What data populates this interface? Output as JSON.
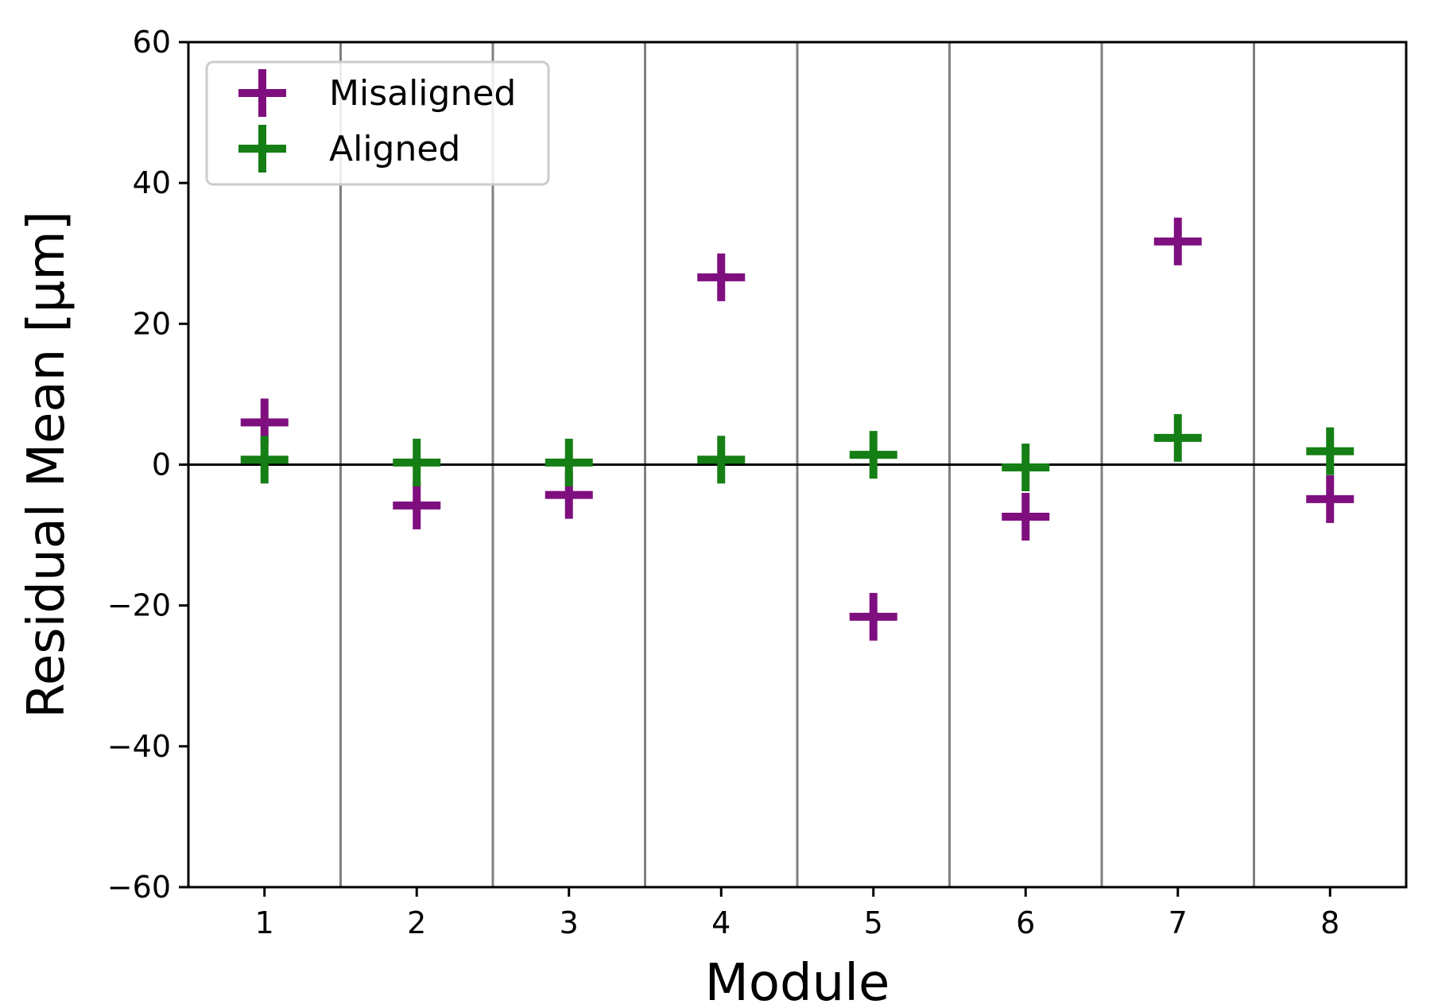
{
  "chart_data": {
    "type": "scatter",
    "xlabel": "Module",
    "ylabel": "Residual Mean [μm]",
    "xlim": [
      0.5,
      8.5
    ],
    "ylim": [
      -60,
      60
    ],
    "xticks": [
      "1",
      "2",
      "3",
      "4",
      "5",
      "6",
      "7",
      "8"
    ],
    "yticks": [
      "−60",
      "−40",
      "−20",
      "0",
      "20",
      "40",
      "60"
    ],
    "ytick_values": [
      -60,
      -40,
      -20,
      0,
      20,
      40,
      60
    ],
    "vlines": [
      1.5,
      2.5,
      3.5,
      4.5,
      5.5,
      6.5,
      7.5
    ],
    "hline": 0,
    "grid": false,
    "legend_position": "top-left",
    "series": [
      {
        "name": "Misaligned",
        "color": "#7f0f7f",
        "marker": "plus",
        "x": [
          1,
          2,
          3,
          4,
          5,
          6,
          7,
          8
        ],
        "y": [
          6.0,
          -5.8,
          -4.3,
          26.6,
          -21.6,
          -7.4,
          31.7,
          -4.9
        ]
      },
      {
        "name": "Aligned",
        "color": "#157f15",
        "marker": "plus",
        "x": [
          1,
          2,
          3,
          4,
          5,
          6,
          7,
          8
        ],
        "y": [
          0.7,
          0.3,
          0.3,
          0.7,
          1.4,
          -0.4,
          3.8,
          1.9
        ]
      }
    ]
  }
}
